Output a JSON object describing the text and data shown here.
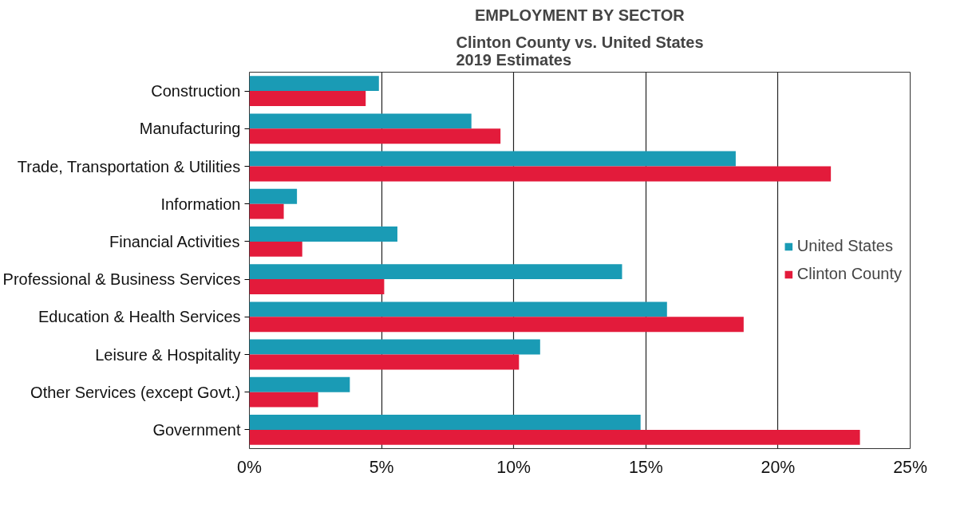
{
  "chart_data": {
    "type": "bar",
    "orientation": "horizontal",
    "title": "EMPLOYMENT BY SECTOR",
    "subtitle": "Clinton County vs. United States\n2019 Estimates",
    "categories": [
      "Construction",
      "Manufacturing",
      "Trade, Transportation & Utilities",
      "Information",
      "Financial Activities",
      "Professional & Business Services",
      "Education & Health Services",
      "Leisure & Hospitality",
      "Other Services (except Govt.)",
      "Government"
    ],
    "series": [
      {
        "name": "United States",
        "color": "#1a9bb5",
        "values": [
          4.9,
          8.4,
          18.4,
          1.8,
          5.6,
          14.1,
          15.8,
          11.0,
          3.8,
          14.8
        ]
      },
      {
        "name": "Clinton County",
        "color": "#e31b3b",
        "values": [
          4.4,
          9.5,
          22.0,
          1.3,
          2.0,
          5.1,
          18.7,
          10.2,
          2.6,
          23.1
        ]
      }
    ],
    "xlim": [
      0,
      25
    ],
    "xticks": [
      {
        "value": 0,
        "label": "0%"
      },
      {
        "value": 5,
        "label": "5%"
      },
      {
        "value": 10,
        "label": "10%"
      },
      {
        "value": 15,
        "label": "15%"
      },
      {
        "value": 20,
        "label": "20%"
      },
      {
        "value": 25,
        "label": "25%"
      }
    ],
    "grid": "x",
    "legend": "right"
  }
}
